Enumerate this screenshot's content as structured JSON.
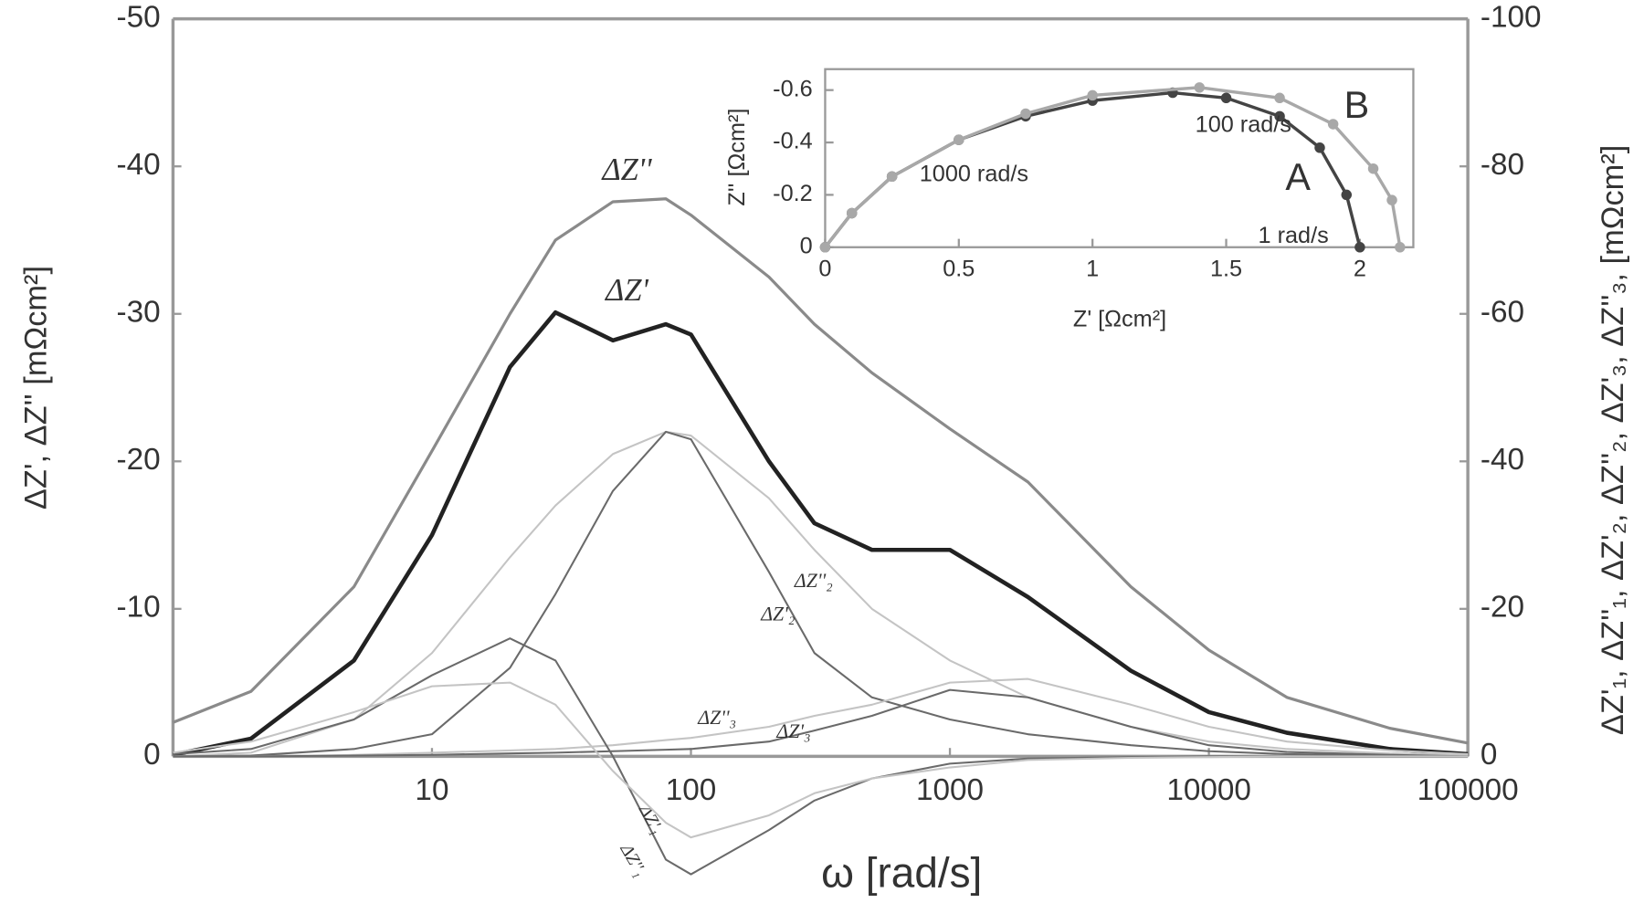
{
  "chart_data": [
    {
      "type": "line",
      "x_label": "ω  [rad/s]",
      "y_label": "ΔZ', ΔZ'' [mΩcm²]",
      "y2_label": "ΔZ'₁, ΔZ''₁, ΔZ'₂, ΔZ''₂, ΔZ'₃, ΔZ''₃, [mΩcm²]",
      "xscale": "log",
      "xlim": [
        1,
        100000
      ],
      "xticks": [
        10,
        100,
        1000,
        10000,
        100000
      ],
      "ylim": [
        0,
        -50
      ],
      "yticks": [
        0,
        -10,
        -20,
        -30,
        -40,
        -50
      ],
      "y2lim": [
        0,
        -100
      ],
      "y2ticks": [
        0,
        -20,
        -40,
        -60,
        -80,
        -100
      ],
      "x": [
        1,
        2,
        5,
        10,
        20,
        30,
        50,
        80,
        100,
        200,
        300,
        500,
        1000,
        2000,
        5000,
        10000,
        20000,
        50000,
        100000
      ],
      "series": [
        {
          "name": "ΔZ''",
          "color": "#8a8a8a",
          "values": [
            -2.3,
            -4.4,
            -11.5,
            -20.7,
            -30,
            -35,
            -37.6,
            -37.8,
            -36.7,
            -32.5,
            -29.3,
            -26,
            -22.2,
            -18.6,
            -11.5,
            -7.2,
            -4,
            -1.9,
            -0.9
          ]
        },
        {
          "name": "ΔZ'",
          "color": "#222222",
          "values": [
            -0.1,
            -1.2,
            -6.5,
            -15,
            -26.4,
            -30.1,
            -28.2,
            -29.3,
            -28.6,
            -20,
            -15.8,
            -14,
            -14,
            -10.8,
            -5.8,
            -3,
            -1.6,
            -0.5,
            -0.15
          ]
        },
        {
          "name": "ΔZ''₂",
          "color": "#c4c4c4",
          "axis": "y2",
          "values": [
            0,
            -0.5,
            -5,
            -14,
            -27,
            -34,
            -41,
            -44,
            -43.5,
            -35,
            -28,
            -20,
            -13,
            -8,
            -4,
            -2,
            -1,
            -0.4,
            -0.2
          ]
        },
        {
          "name": "ΔZ'₂",
          "color": "#6a6a6a",
          "axis": "y2",
          "values": [
            0,
            -0.1,
            -1,
            -3,
            -12,
            -22,
            -36,
            -44,
            -43,
            -25,
            -14,
            -8,
            -5,
            -3,
            -1.5,
            -0.7,
            -0.3,
            -0.1,
            0
          ]
        },
        {
          "name": "ΔZ''₃",
          "color": "#c4c4c4",
          "axis": "y2",
          "values": [
            0,
            0,
            -0.2,
            -0.5,
            -0.8,
            -1,
            -1.5,
            -2.2,
            -2.5,
            -4,
            -5.5,
            -7,
            -10,
            -10.5,
            -7,
            -4,
            -2,
            -0.8,
            -0.3
          ]
        },
        {
          "name": "ΔZ'₃",
          "color": "#6a6a6a",
          "axis": "y2",
          "values": [
            0,
            0,
            -0.1,
            -0.2,
            -0.4,
            -0.5,
            -0.7,
            -0.9,
            -1,
            -2,
            -3.5,
            -5.5,
            -9,
            -8,
            -4,
            -1.5,
            -0.6,
            -0.2,
            0
          ]
        },
        {
          "name": "ΔZ'₁",
          "color": "#6a6a6a",
          "axis": "y2",
          "values": [
            -0.3,
            -1,
            -5,
            -11,
            -16,
            -13,
            0,
            14,
            16,
            10,
            6,
            3,
            1,
            0.3,
            0.1,
            0,
            0,
            0,
            0
          ]
        },
        {
          "name": "ΔZ''₁",
          "color": "#c4c4c4",
          "axis": "y2",
          "values": [
            -0.5,
            -2,
            -6,
            -9.5,
            -10,
            -7,
            2,
            9,
            11,
            8,
            5,
            3,
            1.5,
            0.5,
            0.2,
            0.1,
            0,
            0,
            0
          ]
        }
      ]
    },
    {
      "type": "line",
      "x_label": "Z' [Ωcm²]",
      "y_label": "Z'' [Ωcm²]",
      "xlim": [
        0,
        2.2
      ],
      "xticks": [
        0,
        0.5,
        1,
        1.5,
        2
      ],
      "ylim": [
        0,
        -0.68
      ],
      "yticks": [
        0,
        -0.2,
        -0.4,
        -0.6
      ],
      "markers": true,
      "annotations": [
        "100 rad/s",
        "1000 rad/s",
        "1 rad/s",
        "A",
        "B"
      ],
      "series": [
        {
          "name": "A",
          "color": "#444444",
          "x": [
            0,
            0.1,
            0.25,
            0.5,
            0.75,
            1.0,
            1.3,
            1.5,
            1.7,
            1.85,
            1.95,
            2.0
          ],
          "values": [
            0,
            -0.13,
            -0.27,
            -0.41,
            -0.5,
            -0.56,
            -0.59,
            -0.57,
            -0.5,
            -0.38,
            -0.2,
            0
          ]
        },
        {
          "name": "B",
          "color": "#a8a8a8",
          "x": [
            0,
            0.1,
            0.25,
            0.5,
            0.75,
            1.0,
            1.4,
            1.7,
            1.9,
            2.05,
            2.12,
            2.15
          ],
          "values": [
            0,
            -0.13,
            -0.27,
            -0.41,
            -0.51,
            -0.58,
            -0.61,
            -0.57,
            -0.47,
            -0.3,
            -0.18,
            0
          ]
        }
      ]
    }
  ]
}
